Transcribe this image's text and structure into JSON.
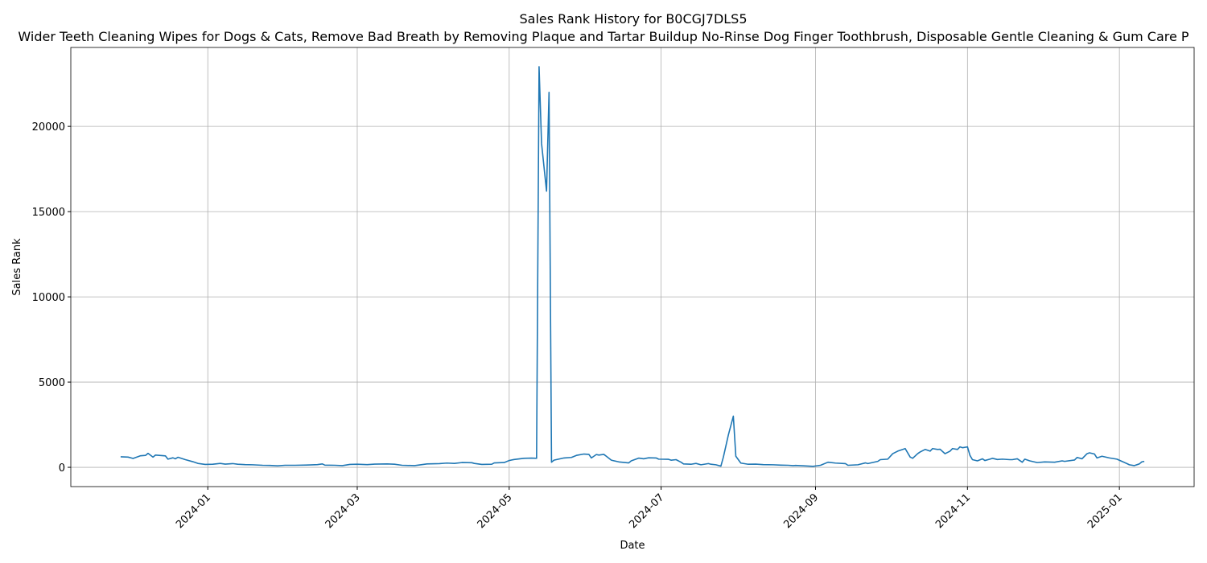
{
  "chart_data": {
    "type": "line",
    "title": "Sales Rank History for B0CGJ7DLS5",
    "subtitle": "Wider Teeth Cleaning Wipes for Dogs & Cats, Remove Bad Breath by Removing Plaque and Tartar Buildup No-Rinse Dog Finger Toothbrush, Disposable Gentle Cleaning & Gum Care P",
    "x_label": "Date",
    "y_label": "Sales Rank",
    "color": "#1f77b4",
    "grid": true,
    "xlim": [
      19668,
      20119
    ],
    "xticks": [
      {
        "value": 19723,
        "label": "2024-01"
      },
      {
        "value": 19783,
        "label": "2024-03"
      },
      {
        "value": 19844,
        "label": "2024-05"
      },
      {
        "value": 19905,
        "label": "2024-07"
      },
      {
        "value": 19967,
        "label": "2024-09"
      },
      {
        "value": 20028,
        "label": "2024-11"
      },
      {
        "value": 20089,
        "label": "2025-01"
      }
    ],
    "ylim": [
      -1130,
      24630
    ],
    "yticks": [
      0,
      5000,
      10000,
      15000,
      20000
    ],
    "x": [
      19688,
      19691,
      19693,
      19696,
      19698,
      19699,
      19701,
      19702,
      19706,
      19707,
      19709,
      19710,
      19711,
      19714,
      19717,
      19719,
      19722,
      19725,
      19728,
      19730,
      19733,
      19735,
      19738,
      19741,
      19745,
      19748,
      19751,
      19754,
      19758,
      19764,
      19767,
      19769,
      19770,
      19774,
      19777,
      19780,
      19783,
      19787,
      19790,
      19795,
      19798,
      19801,
      19806,
      19811,
      19816,
      19819,
      19822,
      19825,
      19829,
      19830,
      19833,
      19837,
      19838,
      19842,
      19844,
      19846,
      19850,
      19853,
      19855,
      19856,
      19857,
      19859,
      19860,
      19861,
      19862,
      19866,
      19869,
      19871,
      19874,
      19876,
      19877,
      19879,
      19880,
      19882,
      19883,
      19885,
      19888,
      19892,
      19893,
      19896,
      19898,
      19900,
      19903,
      19904,
      19908,
      19909,
      19911,
      19913,
      19914,
      19917,
      19919,
      19921,
      19924,
      19925,
      19927,
      19929,
      19930,
      19932,
      19934,
      19935,
      19937,
      19940,
      19943,
      19946,
      19950,
      19953,
      19956,
      19958,
      19959,
      19963,
      19966,
      19969,
      19972,
      19975,
      19979,
      19980,
      19984,
      19987,
      19988,
      19992,
      19993,
      19996,
      19998,
      20000,
      20003,
      20005,
      20006,
      20008,
      20009,
      20011,
      20013,
      20014,
      20016,
      20017,
      20019,
      20021,
      20022,
      20024,
      20025,
      20026,
      20028,
      20029,
      20030,
      20032,
      20034,
      20035,
      20037,
      20038,
      20040,
      20042,
      20045,
      20046,
      20048,
      20050,
      20051,
      20053,
      20056,
      20059,
      20063,
      20066,
      20067,
      20071,
      20072,
      20074,
      20076,
      20077,
      20079,
      20080,
      20082,
      20085,
      20088,
      20090,
      20092,
      20093,
      20095,
      20097,
      20098,
      20099
    ],
    "values": [
      620,
      600,
      520,
      680,
      700,
      820,
      600,
      720,
      670,
      480,
      560,
      500,
      590,
      450,
      330,
      230,
      170,
      180,
      230,
      190,
      220,
      180,
      160,
      150,
      120,
      110,
      90,
      120,
      120,
      140,
      160,
      200,
      130,
      120,
      100,
      170,
      180,
      160,
      190,
      200,
      180,
      120,
      100,
      200,
      220,
      250,
      230,
      280,
      270,
      230,
      170,
      180,
      260,
      280,
      400,
      460,
      530,
      540,
      530,
      23500,
      19000,
      16200,
      22000,
      300,
      420,
      550,
      580,
      700,
      780,
      760,
      550,
      750,
      720,
      760,
      650,
      420,
      320,
      260,
      380,
      540,
      500,
      560,
      550,
      480,
      470,
      420,
      450,
      300,
      200,
      180,
      230,
      150,
      220,
      180,
      150,
      70,
      600,
      1900,
      3000,
      650,
      250,
      180,
      190,
      160,
      150,
      130,
      120,
      100,
      110,
      80,
      60,
      120,
      300,
      250,
      220,
      120,
      150,
      260,
      220,
      350,
      450,
      480,
      800,
      950,
      1100,
      600,
      530,
      800,
      900,
      1050,
      950,
      1100,
      1050,
      1060,
      800,
      950,
      1100,
      1050,
      1200,
      1150,
      1200,
      700,
      450,
      380,
      500,
      400,
      480,
      530,
      460,
      480,
      450,
      450,
      500,
      300,
      480,
      380,
      280,
      320,
      300,
      380,
      350,
      430,
      580,
      500,
      800,
      850,
      780,
      550,
      650,
      550,
      480,
      350,
      220,
      150,
      100,
      200,
      320,
      350
    ]
  }
}
